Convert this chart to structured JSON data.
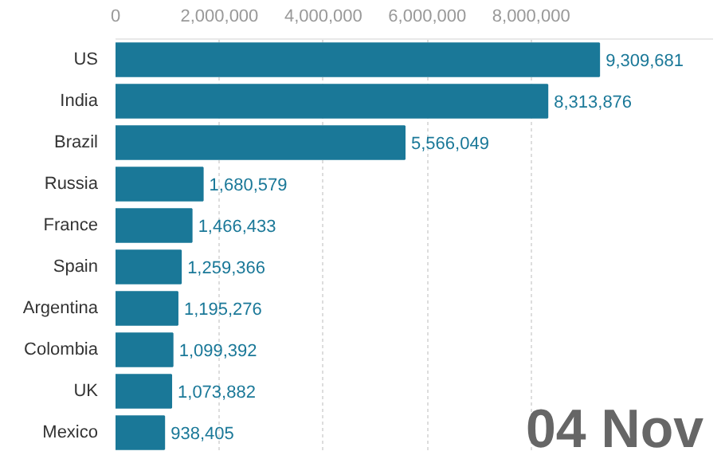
{
  "chart_data": {
    "type": "bar",
    "orientation": "horizontal",
    "categories": [
      "US",
      "India",
      "Brazil",
      "Russia",
      "France",
      "Spain",
      "Argentina",
      "Colombia",
      "UK",
      "Mexico"
    ],
    "values": [
      9309681,
      8313876,
      5566049,
      1680579,
      1466433,
      1259366,
      1195276,
      1099392,
      1073882,
      938405
    ],
    "value_labels": [
      "9,309,681",
      "8,313,876",
      "5,566,049",
      "1,680,579",
      "1,466,433",
      "1,259,366",
      "1,195,276",
      "1,099,392",
      "1,073,882",
      "938,405"
    ],
    "color": "#1a7898",
    "xlim": [
      0,
      11500000
    ],
    "xticks": [
      {
        "value": 0,
        "label": "0"
      },
      {
        "value": 2000000,
        "label": "2,000,000"
      },
      {
        "value": 4000000,
        "label": "4,000,000"
      },
      {
        "value": 6000000,
        "label": "6,000,000"
      },
      {
        "value": 8000000,
        "label": "8,000,000"
      }
    ],
    "grid": "x",
    "annotations": [
      "04 Nov"
    ]
  }
}
